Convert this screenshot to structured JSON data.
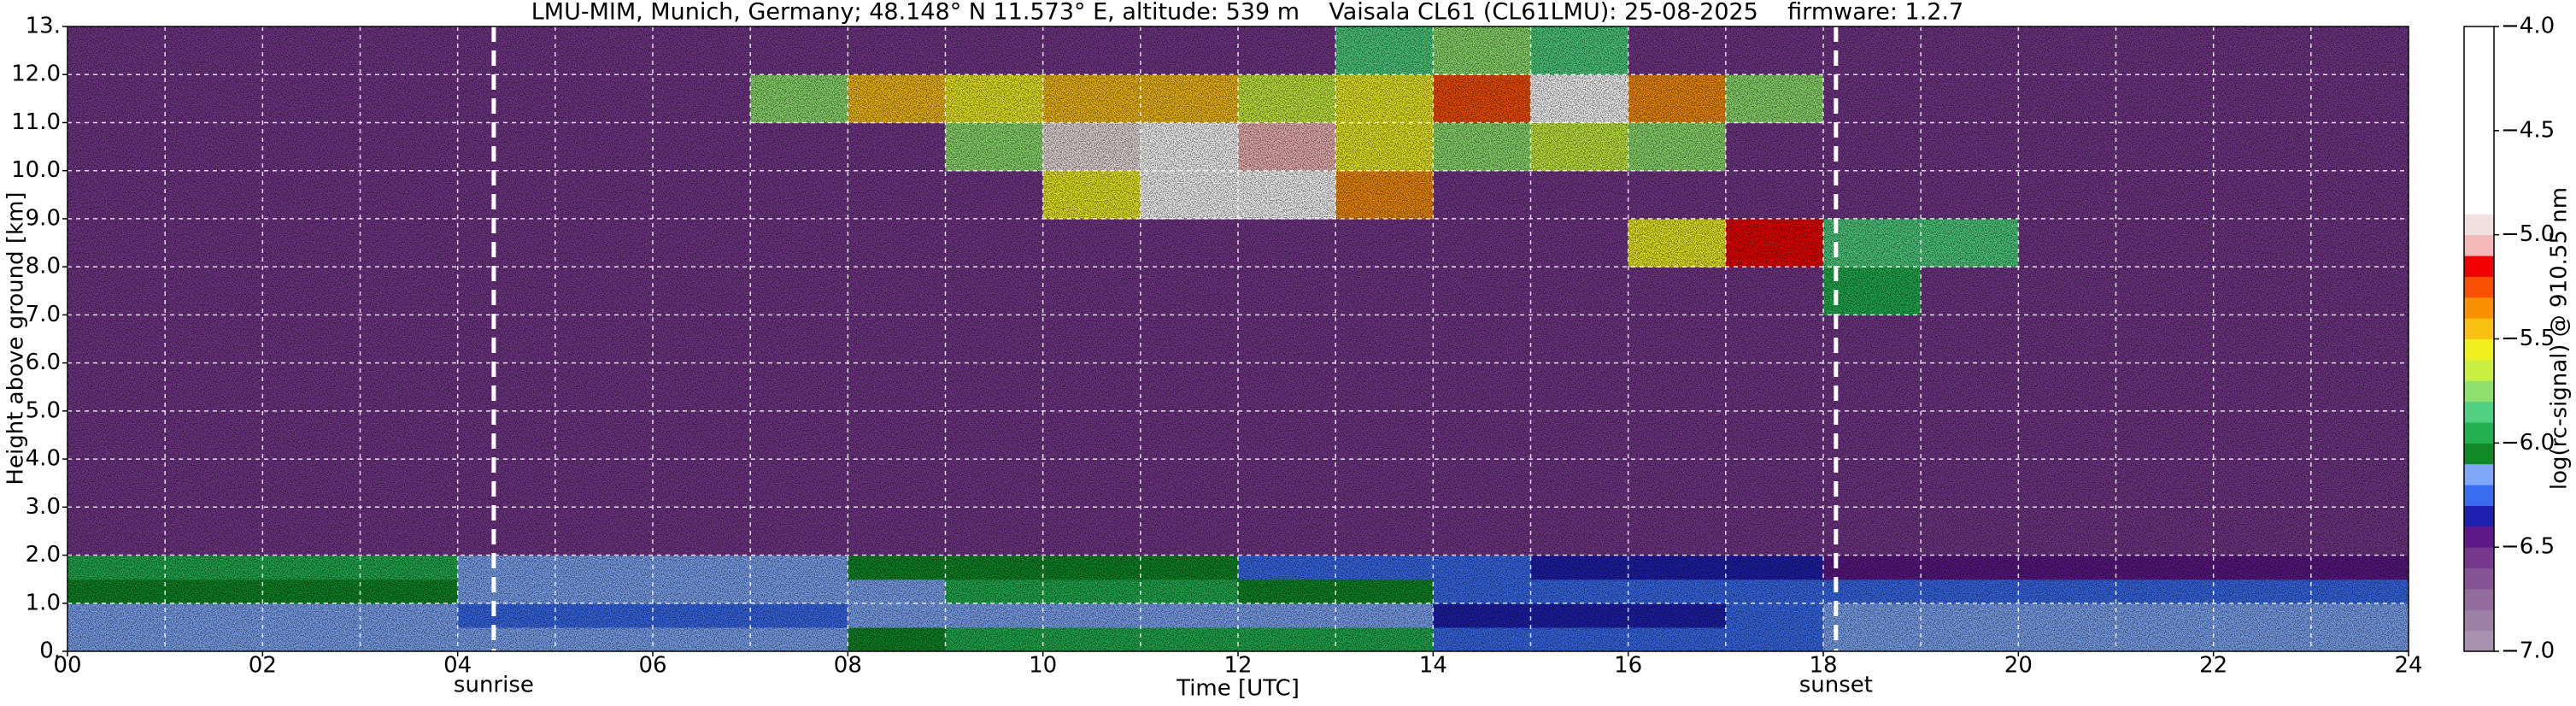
{
  "chart_data": {
    "type": "heatmap",
    "title": "LMU-MIM, Munich, Germany; 48.148° N 11.573° E, altitude: 539 m    Vaisala CL61 (CL61LMU): 25-08-2025    firmware: 1.2.7",
    "x_label": "Time [UTC]",
    "y_label": "Height above ground [km]",
    "colorbar_label": "log(rc-signal) @ 910.55 nm",
    "xlim": [
      0,
      24
    ],
    "xticks": [
      {
        "value": 0,
        "label": "00"
      },
      {
        "value": 2,
        "label": "02"
      },
      {
        "value": 4,
        "label": "04"
      },
      {
        "value": 6,
        "label": "06"
      },
      {
        "value": 8,
        "label": "08"
      },
      {
        "value": 10,
        "label": "10"
      },
      {
        "value": 12,
        "label": "12"
      },
      {
        "value": 14,
        "label": "14"
      },
      {
        "value": 16,
        "label": "16"
      },
      {
        "value": 18,
        "label": "18"
      },
      {
        "value": 20,
        "label": "20"
      },
      {
        "value": 22,
        "label": "22"
      },
      {
        "value": 24,
        "label": "24"
      }
    ],
    "xminorticks": [
      1,
      3,
      5,
      7,
      9,
      11,
      13,
      15,
      17,
      19,
      21,
      23
    ],
    "ylim": [
      0,
      13
    ],
    "yticks": [
      {
        "value": 0,
        "label": "0."
      },
      {
        "value": 1,
        "label": "1.0"
      },
      {
        "value": 2,
        "label": "2.0"
      },
      {
        "value": 3,
        "label": "3.0"
      },
      {
        "value": 4,
        "label": "4.0"
      },
      {
        "value": 5,
        "label": "5.0"
      },
      {
        "value": 6,
        "label": "6.0"
      },
      {
        "value": 7,
        "label": "7.0"
      },
      {
        "value": 8,
        "label": "8.0"
      },
      {
        "value": 9,
        "label": "9.0"
      },
      {
        "value": 10,
        "label": "10.0"
      },
      {
        "value": 11,
        "label": "11.0"
      },
      {
        "value": 12,
        "label": "12.0"
      },
      {
        "value": 13,
        "label": "13."
      }
    ],
    "grid": true,
    "x_bins": [
      0,
      1,
      2,
      3,
      4,
      5,
      6,
      7,
      8,
      9,
      10,
      11,
      12,
      13,
      14,
      15,
      16,
      17,
      18,
      19,
      20,
      21,
      22,
      23,
      24
    ],
    "y_bins": [
      0,
      0.5,
      1,
      1.5,
      2,
      3,
      4,
      5,
      6,
      7,
      8,
      9,
      10,
      11,
      12,
      13
    ],
    "z": [
      [
        -6.15,
        -6.15,
        -6.15,
        -6.15,
        -6.15,
        -6.15,
        -6.15,
        -6.15,
        -6.05,
        -6.0,
        -6.0,
        -6.0,
        -6.0,
        -6.0,
        -6.25,
        -6.25,
        -6.25,
        -6.25,
        -6.15,
        -6.15,
        -6.15,
        -6.15,
        -6.15,
        -6.15
      ],
      [
        -6.2,
        -6.2,
        -6.2,
        -6.2,
        -6.3,
        -6.3,
        -6.3,
        -6.3,
        -6.15,
        -6.12,
        -6.12,
        -6.12,
        -6.12,
        -6.12,
        -6.32,
        -6.32,
        -6.32,
        -6.22,
        -6.18,
        -6.18,
        -6.18,
        -6.18,
        -6.18,
        -6.18
      ],
      [
        -6.1,
        -6.1,
        -6.1,
        -6.1,
        -6.2,
        -6.2,
        -6.2,
        -6.2,
        -6.2,
        -6.0,
        -6.0,
        -6.0,
        -6.1,
        -6.1,
        -6.25,
        -6.25,
        -6.25,
        -6.3,
        -6.3,
        -6.3,
        -6.3,
        -6.3,
        -6.3,
        -6.3
      ],
      [
        -5.98,
        -5.98,
        -5.98,
        -5.98,
        -6.2,
        -6.2,
        -6.2,
        -6.2,
        -6.05,
        -6.05,
        -6.05,
        -6.05,
        -6.3,
        -6.3,
        -6.3,
        -6.4,
        -6.4,
        -6.4,
        -6.5,
        -6.5,
        -6.5,
        -6.5,
        -6.5,
        -6.5
      ],
      [
        -6.6,
        -6.6,
        -6.6,
        -6.6,
        -6.6,
        -6.6,
        -6.6,
        -6.6,
        -6.6,
        -6.6,
        -6.6,
        -6.6,
        -6.6,
        -6.6,
        -6.6,
        -6.6,
        -6.6,
        -6.6,
        -6.6,
        -6.6,
        -6.6,
        -6.6,
        -6.6,
        -6.6
      ],
      [
        -6.6,
        -6.6,
        -6.6,
        -6.6,
        -6.6,
        -6.6,
        -6.6,
        -6.6,
        -6.6,
        -6.6,
        -6.6,
        -6.6,
        -6.6,
        -6.6,
        -6.6,
        -6.6,
        -6.6,
        -6.6,
        -6.6,
        -6.6,
        -6.6,
        -6.6,
        -6.6,
        -6.6
      ],
      [
        -6.6,
        -6.6,
        -6.6,
        -6.6,
        -6.6,
        -6.6,
        -6.6,
        -6.6,
        -6.6,
        -6.6,
        -6.6,
        -6.6,
        -6.6,
        -6.6,
        -6.6,
        -6.6,
        -6.6,
        -6.6,
        -6.6,
        -6.6,
        -6.6,
        -6.6,
        -6.6,
        -6.6
      ],
      [
        -6.6,
        -6.6,
        -6.6,
        -6.6,
        -6.6,
        -6.6,
        -6.6,
        -6.6,
        -6.6,
        -6.6,
        -6.6,
        -6.6,
        -6.6,
        -6.6,
        -6.6,
        -6.6,
        -6.6,
        -6.6,
        -6.6,
        -6.6,
        -6.6,
        -6.6,
        -6.6,
        -6.6
      ],
      [
        -6.6,
        -6.6,
        -6.6,
        -6.6,
        -6.6,
        -6.6,
        -6.6,
        -6.6,
        -6.6,
        -6.6,
        -6.6,
        -6.6,
        -6.6,
        -6.6,
        -6.6,
        -6.6,
        -6.6,
        -6.6,
        -6.6,
        -6.6,
        -6.6,
        -6.6,
        -6.6,
        -6.6
      ],
      [
        -6.6,
        -6.6,
        -6.6,
        -6.6,
        -6.6,
        -6.6,
        -6.6,
        -6.6,
        -6.6,
        -6.6,
        -6.6,
        -6.6,
        -6.6,
        -6.6,
        -6.6,
        -6.6,
        -6.6,
        -6.6,
        -6.0,
        -6.6,
        -6.6,
        -6.6,
        -6.6,
        -6.6
      ],
      [
        -6.6,
        -6.6,
        -6.6,
        -6.6,
        -6.6,
        -6.6,
        -6.6,
        -6.6,
        -6.6,
        -6.6,
        -6.6,
        -6.6,
        -6.6,
        -6.6,
        -6.6,
        -6.6,
        -5.6,
        -5.2,
        -5.9,
        -5.85,
        -6.6,
        -6.6,
        -6.6,
        -6.6
      ],
      [
        -6.6,
        -6.6,
        -6.6,
        -6.6,
        -6.6,
        -6.6,
        -6.6,
        -6.6,
        -6.6,
        -6.6,
        -5.6,
        -4.8,
        -4.7,
        -5.4,
        -6.6,
        -6.6,
        -6.6,
        -6.6,
        -6.6,
        -6.6,
        -6.6,
        -6.6,
        -6.6,
        -6.6
      ],
      [
        -6.6,
        -6.6,
        -6.6,
        -6.6,
        -6.6,
        -6.6,
        -6.6,
        -6.6,
        -6.6,
        -5.75,
        -5.0,
        -4.8,
        -5.05,
        -5.6,
        -5.75,
        -5.7,
        -5.8,
        -6.6,
        -6.6,
        -6.6,
        -6.6,
        -6.6,
        -6.6,
        -6.6
      ],
      [
        -6.6,
        -6.6,
        -6.6,
        -6.6,
        -6.6,
        -6.6,
        -6.6,
        -5.75,
        -5.5,
        -5.6,
        -5.5,
        -5.5,
        -5.65,
        -5.6,
        -5.3,
        -4.8,
        -5.4,
        -5.75,
        -6.6,
        -6.6,
        -6.6,
        -6.6,
        -6.6,
        -6.6
      ],
      [
        -6.6,
        -6.6,
        -6.6,
        -6.6,
        -6.6,
        -6.6,
        -6.6,
        -6.6,
        -6.6,
        -6.6,
        -6.6,
        -6.6,
        -6.6,
        -5.9,
        -5.8,
        -5.9,
        -6.6,
        -6.6,
        -6.6,
        -6.6,
        -6.6,
        -6.6,
        -6.6,
        -6.6
      ]
    ],
    "colorbar": {
      "clim": [
        -7,
        -4
      ],
      "ticks": [
        {
          "value": -4,
          "label": "−4.0"
        },
        {
          "value": -4.5,
          "label": "−4.5"
        },
        {
          "value": -5,
          "label": "−5.0"
        },
        {
          "value": -5.5,
          "label": "−5.5"
        },
        {
          "value": -6,
          "label": "−6.0"
        },
        {
          "value": -6.5,
          "label": "−6.5"
        },
        {
          "value": -7,
          "label": "−7.0"
        }
      ],
      "bounds": [
        -7.0,
        -6.9,
        -6.8,
        -6.7,
        -6.6,
        -6.5,
        -6.4,
        -6.3,
        -6.2,
        -6.1,
        -6.0,
        -5.9,
        -5.8,
        -5.7,
        -5.6,
        -5.5,
        -5.4,
        -5.3,
        -5.2,
        -5.1,
        -5.0,
        -4.9,
        -4.0
      ],
      "colors": [
        "#a892b0",
        "#9c80a6",
        "#926c9c",
        "#865494",
        "#76388c",
        "#5e1888",
        "#2020b0",
        "#3a6cf0",
        "#80a8f8",
        "#108a28",
        "#22b050",
        "#50d080",
        "#90e070",
        "#c8f040",
        "#f0f020",
        "#f8c010",
        "#f89000",
        "#f85000",
        "#f00000",
        "#f4b8b8",
        "#f0e0e0",
        "#ffffff"
      ]
    },
    "annotations": [
      {
        "text": "sunrise",
        "x": 4.37
      },
      {
        "text": "sunset",
        "x": 18.13
      }
    ]
  }
}
